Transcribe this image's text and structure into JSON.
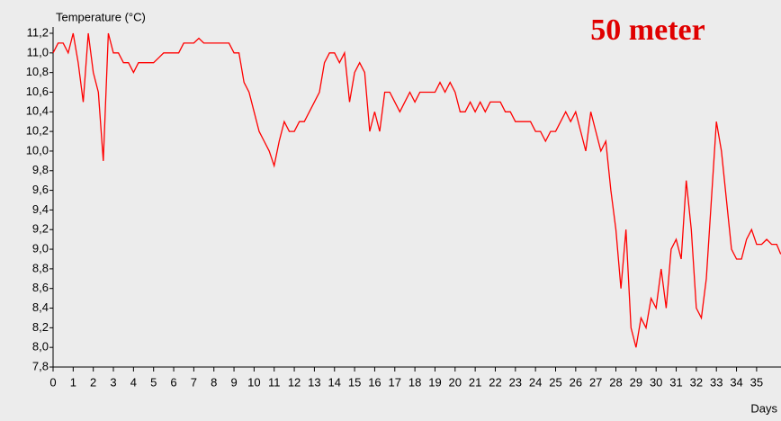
{
  "chart_data": {
    "type": "line",
    "title": "50 meter",
    "ylabel": "Temperature (°C)",
    "xlabel": "Days",
    "x": [
      0,
      0.25,
      0.5,
      0.75,
      1,
      1.25,
      1.5,
      1.75,
      2,
      2.25,
      2.5,
      2.75,
      3,
      3.25,
      3.5,
      3.75,
      4,
      4.25,
      4.5,
      4.75,
      5,
      5.25,
      5.5,
      5.75,
      6,
      6.25,
      6.5,
      6.75,
      7,
      7.25,
      7.5,
      7.75,
      8,
      8.25,
      8.5,
      8.75,
      9,
      9.25,
      9.5,
      9.75,
      10,
      10.25,
      10.5,
      10.75,
      11,
      11.25,
      11.5,
      11.75,
      12,
      12.25,
      12.5,
      12.75,
      13,
      13.25,
      13.5,
      13.75,
      14,
      14.25,
      14.5,
      14.75,
      15,
      15.25,
      15.5,
      15.75,
      16,
      16.25,
      16.5,
      16.75,
      17,
      17.25,
      17.5,
      17.75,
      18,
      18.25,
      18.5,
      18.75,
      19,
      19.25,
      19.5,
      19.75,
      20,
      20.25,
      20.5,
      20.75,
      21,
      21.25,
      21.5,
      21.75,
      22,
      22.25,
      22.5,
      22.75,
      23,
      23.25,
      23.5,
      23.75,
      24,
      24.25,
      24.5,
      24.75,
      25,
      25.25,
      25.5,
      25.75,
      26,
      26.25,
      26.5,
      26.75,
      27,
      27.25,
      27.5,
      27.75,
      28,
      28.25,
      28.5,
      28.75,
      29,
      29.25,
      29.5,
      29.75,
      30,
      30.25,
      30.5,
      30.75,
      31,
      31.25,
      31.5,
      31.75,
      32,
      32.25,
      32.5,
      32.75,
      33,
      33.25,
      33.5,
      33.75,
      34,
      34.25,
      34.5,
      34.75,
      35,
      35.25,
      35.5,
      35.75,
      36,
      36.2
    ],
    "series": [
      {
        "name": "Temperature",
        "color": "#ff0000",
        "values": [
          11.0,
          11.1,
          11.1,
          11.0,
          11.2,
          10.9,
          10.5,
          11.2,
          10.8,
          10.6,
          9.9,
          11.2,
          11.0,
          11.0,
          10.9,
          10.9,
          10.8,
          10.9,
          10.9,
          10.9,
          10.9,
          10.95,
          11.0,
          11.0,
          11.0,
          11.0,
          11.1,
          11.1,
          11.1,
          11.15,
          11.1,
          11.1,
          11.1,
          11.1,
          11.1,
          11.1,
          11.0,
          11.0,
          10.7,
          10.6,
          10.4,
          10.2,
          10.1,
          10.0,
          9.85,
          10.1,
          10.3,
          10.2,
          10.2,
          10.3,
          10.3,
          10.4,
          10.5,
          10.6,
          10.9,
          11.0,
          11.0,
          10.9,
          11.0,
          10.5,
          10.8,
          10.9,
          10.8,
          10.2,
          10.4,
          10.2,
          10.6,
          10.6,
          10.5,
          10.4,
          10.5,
          10.6,
          10.5,
          10.6,
          10.6,
          10.6,
          10.6,
          10.7,
          10.6,
          10.7,
          10.6,
          10.4,
          10.4,
          10.5,
          10.4,
          10.5,
          10.4,
          10.5,
          10.5,
          10.5,
          10.4,
          10.4,
          10.3,
          10.3,
          10.3,
          10.3,
          10.2,
          10.2,
          10.1,
          10.2,
          10.2,
          10.3,
          10.4,
          10.3,
          10.4,
          10.2,
          10.0,
          10.4,
          10.2,
          10.0,
          10.1,
          9.6,
          9.2,
          8.6,
          9.2,
          8.2,
          8.0,
          8.3,
          8.2,
          8.5,
          8.4,
          8.8,
          8.4,
          9.0,
          9.1,
          8.9,
          9.7,
          9.2,
          8.4,
          8.3,
          8.7,
          9.5,
          10.3,
          10.0,
          9.5,
          9.0,
          8.9,
          8.9,
          9.1,
          9.2,
          9.05,
          9.05,
          9.1,
          9.05,
          9.05,
          8.95
        ]
      }
    ],
    "xlim": [
      0,
      36.2
    ],
    "xticks": [
      0,
      1,
      2,
      3,
      4,
      5,
      6,
      7,
      8,
      9,
      10,
      11,
      12,
      13,
      14,
      15,
      16,
      17,
      18,
      19,
      20,
      21,
      22,
      23,
      24,
      25,
      26,
      27,
      28,
      29,
      30,
      31,
      32,
      33,
      34,
      35
    ],
    "ylim": [
      7.8,
      11.2
    ],
    "yticks": [
      {
        "value": 7.8,
        "label": "7,8"
      },
      {
        "value": 8.0,
        "label": "8,0"
      },
      {
        "value": 8.2,
        "label": "8,2"
      },
      {
        "value": 8.4,
        "label": "8,4"
      },
      {
        "value": 8.6,
        "label": "8,6"
      },
      {
        "value": 8.8,
        "label": "8,8"
      },
      {
        "value": 9.0,
        "label": "9,0"
      },
      {
        "value": 9.2,
        "label": "9,2"
      },
      {
        "value": 9.4,
        "label": "9,4"
      },
      {
        "value": 9.6,
        "label": "9,6"
      },
      {
        "value": 9.8,
        "label": "9,8"
      },
      {
        "value": 10.0,
        "label": "10,0"
      },
      {
        "value": 10.2,
        "label": "10,2"
      },
      {
        "value": 10.4,
        "label": "10,4"
      },
      {
        "value": 10.6,
        "label": "10,6"
      },
      {
        "value": 10.8,
        "label": "10,8"
      },
      {
        "value": 11.0,
        "label": "11,0"
      },
      {
        "value": 11.2,
        "label": "11,2"
      }
    ]
  }
}
